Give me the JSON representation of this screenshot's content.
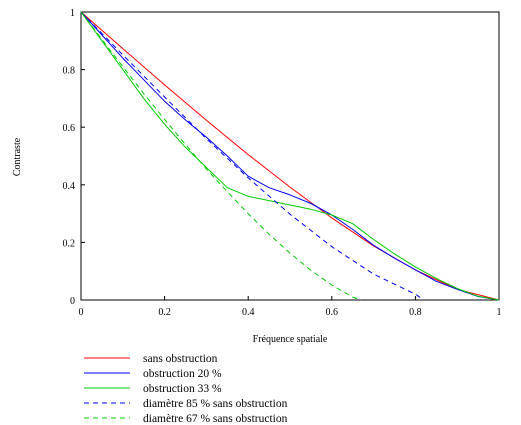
{
  "chart_data": {
    "type": "line",
    "xlabel": "Fréquence spatiale",
    "ylabel": "Contraste",
    "xlim": [
      0,
      1
    ],
    "ylim": [
      0,
      1
    ],
    "x_ticks": [
      "0",
      "0.2",
      "0.4",
      "0.6",
      "0.8",
      "1"
    ],
    "y_ticks": [
      "0",
      "0.2",
      "0.4",
      "0.6",
      "0.8",
      "1"
    ],
    "grid": false,
    "legend_position": "bottom-left",
    "series": [
      {
        "name": "sans obstruction",
        "color": "#ff0000",
        "dash": "solid",
        "x": [
          0,
          0.1,
          0.2,
          0.3,
          0.4,
          0.5,
          0.6,
          0.7,
          0.8,
          0.9,
          1.0
        ],
        "y": [
          1.0,
          0.873,
          0.747,
          0.624,
          0.505,
          0.392,
          0.285,
          0.188,
          0.104,
          0.037,
          0.0
        ]
      },
      {
        "name": "obstruction 20 %",
        "color": "#0000ff",
        "dash": "solid",
        "x": [
          0,
          0.05,
          0.1,
          0.15,
          0.2,
          0.25,
          0.3,
          0.35,
          0.4,
          0.45,
          0.5,
          0.55,
          0.6,
          0.65,
          0.7,
          0.75,
          0.8,
          0.85,
          0.9,
          0.95,
          1.0
        ],
        "y": [
          1.0,
          0.92,
          0.84,
          0.765,
          0.69,
          0.625,
          0.565,
          0.5,
          0.43,
          0.39,
          0.365,
          0.335,
          0.295,
          0.245,
          0.19,
          0.145,
          0.105,
          0.065,
          0.037,
          0.012,
          0.0
        ]
      },
      {
        "name": "obstruction 33 %",
        "color": "#00cc00",
        "dash": "solid",
        "x": [
          0,
          0.05,
          0.1,
          0.15,
          0.2,
          0.25,
          0.3,
          0.35,
          0.4,
          0.45,
          0.5,
          0.55,
          0.6,
          0.65,
          0.7,
          0.75,
          0.8,
          0.85,
          0.9,
          0.95,
          1.0
        ],
        "y": [
          1.0,
          0.9,
          0.8,
          0.7,
          0.61,
          0.53,
          0.46,
          0.39,
          0.36,
          0.345,
          0.33,
          0.315,
          0.295,
          0.265,
          0.21,
          0.16,
          0.115,
          0.075,
          0.04,
          0.013,
          0.0
        ]
      },
      {
        "name": "diamètre 85 % sans obstruction",
        "color": "#0000ff",
        "dash": "dashed",
        "x": [
          0,
          0.1,
          0.2,
          0.3,
          0.4,
          0.5,
          0.6,
          0.7,
          0.8,
          0.82
        ],
        "y": [
          1.0,
          0.851,
          0.705,
          0.56,
          0.424,
          0.298,
          0.185,
          0.09,
          0.02,
          0.0
        ]
      },
      {
        "name": "diamètre 67 % sans obstruction",
        "color": "#00cc00",
        "dash": "dashed",
        "x": [
          0,
          0.05,
          0.1,
          0.15,
          0.2,
          0.25,
          0.3,
          0.35,
          0.4,
          0.45,
          0.5,
          0.55,
          0.6,
          0.65,
          0.67
        ],
        "y": [
          1.0,
          0.905,
          0.81,
          0.717,
          0.627,
          0.54,
          0.455,
          0.376,
          0.3,
          0.228,
          0.163,
          0.103,
          0.052,
          0.01,
          0.0
        ]
      }
    ]
  }
}
